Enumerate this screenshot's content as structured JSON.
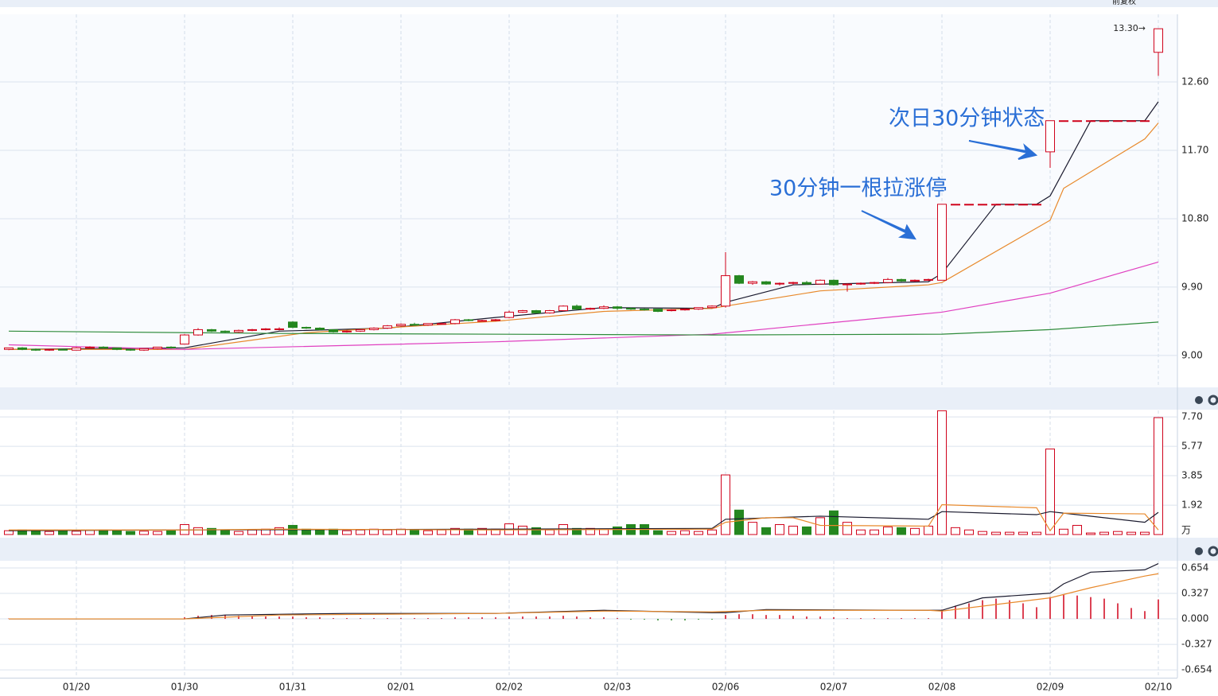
{
  "toolbar_label": "前复权",
  "chart_data": [
    {
      "type": "candlestick",
      "categories": [
        null,
        null,
        null,
        null,
        null,
        "01/20",
        null,
        null,
        null,
        null,
        null,
        null,
        null,
        "01/30",
        null,
        null,
        null,
        null,
        null,
        null,
        null,
        "01/31",
        null,
        null,
        null,
        null,
        null,
        null,
        null,
        "02/01",
        null,
        null,
        null,
        null,
        null,
        null,
        null,
        "02/02",
        null,
        null,
        null,
        null,
        null,
        null,
        null,
        "02/03",
        null,
        null,
        null,
        null,
        null,
        null,
        null,
        "02/06",
        null,
        null,
        null,
        null,
        null,
        null,
        null,
        "02/07",
        null,
        null,
        null,
        null,
        null,
        null,
        null,
        "02/08",
        null,
        null,
        null,
        null,
        null,
        null,
        null,
        "02/09",
        null,
        null,
        null,
        null,
        null,
        null,
        null,
        "02/10"
      ],
      "open": [
        9.08,
        9.1,
        9.08,
        9.07,
        9.08,
        9.07,
        9.1,
        9.11,
        9.1,
        9.08,
        9.07,
        9.09,
        9.11,
        9.15,
        9.27,
        9.34,
        9.32,
        9.31,
        9.33,
        9.34,
        9.35,
        9.44,
        9.37,
        9.36,
        9.34,
        9.31,
        9.32,
        9.34,
        9.36,
        9.39,
        9.41,
        9.4,
        9.42,
        9.42,
        9.47,
        9.46,
        9.46,
        9.5,
        9.57,
        9.59,
        9.56,
        9.59,
        9.65,
        9.61,
        9.62,
        9.64,
        9.62,
        9.61,
        9.61,
        9.59,
        9.6,
        9.61,
        9.63,
        9.65,
        10.05,
        9.95,
        9.97,
        9.94,
        9.95,
        9.96,
        9.94,
        9.99,
        9.93,
        9.94,
        9.95,
        9.96,
        10.0,
        9.98,
        9.99,
        9.99,
        10.99,
        10.99,
        10.99,
        10.99,
        10.99,
        10.99,
        10.99,
        11.68,
        12.09,
        12.09,
        12.09,
        12.09,
        12.09,
        12.09,
        12.09,
        12.99
      ],
      "high": [
        9.1,
        9.11,
        9.09,
        9.08,
        9.09,
        9.11,
        9.12,
        9.12,
        9.1,
        9.09,
        9.09,
        9.11,
        9.12,
        9.28,
        9.36,
        9.35,
        9.33,
        9.34,
        9.35,
        9.36,
        9.37,
        9.45,
        9.38,
        9.37,
        9.34,
        9.33,
        9.34,
        9.37,
        9.4,
        9.42,
        9.43,
        9.42,
        9.43,
        9.48,
        9.48,
        9.47,
        9.48,
        9.59,
        9.6,
        9.6,
        9.6,
        9.66,
        9.67,
        9.63,
        9.66,
        9.65,
        9.63,
        9.62,
        9.61,
        9.61,
        9.62,
        9.63,
        9.66,
        10.36,
        10.06,
        9.98,
        9.98,
        9.96,
        9.97,
        9.98,
        10.0,
        10.0,
        9.95,
        9.96,
        9.97,
        10.02,
        10.01,
        10.0,
        10.01,
        10.99,
        10.99,
        10.99,
        10.99,
        10.99,
        10.99,
        10.99,
        10.99,
        12.09,
        12.09,
        12.09,
        12.09,
        12.09,
        12.09,
        12.09,
        12.09,
        13.3
      ],
      "low": [
        9.07,
        9.07,
        9.06,
        9.06,
        9.07,
        9.07,
        9.09,
        9.09,
        9.07,
        9.06,
        9.06,
        9.08,
        9.09,
        9.15,
        9.26,
        9.31,
        9.3,
        9.3,
        9.32,
        9.33,
        9.33,
        9.36,
        9.35,
        9.33,
        9.3,
        9.3,
        9.31,
        9.33,
        9.35,
        9.38,
        9.39,
        9.39,
        9.41,
        9.41,
        9.45,
        9.45,
        9.45,
        9.49,
        9.56,
        9.55,
        9.55,
        9.58,
        9.6,
        9.6,
        9.61,
        9.6,
        9.6,
        9.59,
        9.57,
        9.58,
        9.59,
        9.6,
        9.62,
        9.63,
        9.94,
        9.93,
        9.93,
        9.92,
        9.93,
        9.93,
        9.93,
        9.92,
        9.84,
        9.93,
        9.94,
        9.95,
        9.97,
        9.97,
        9.98,
        9.99,
        10.99,
        10.99,
        10.99,
        10.99,
        10.99,
        10.99,
        10.99,
        11.47,
        12.09,
        12.09,
        12.09,
        12.09,
        12.09,
        12.09,
        12.09,
        12.68
      ],
      "close": [
        9.1,
        9.08,
        9.07,
        9.08,
        9.07,
        9.1,
        9.11,
        9.1,
        9.08,
        9.07,
        9.09,
        9.11,
        9.1,
        9.27,
        9.34,
        9.32,
        9.31,
        9.33,
        9.34,
        9.35,
        9.35,
        9.37,
        9.36,
        9.34,
        9.31,
        9.32,
        9.34,
        9.36,
        9.39,
        9.41,
        9.4,
        9.42,
        9.42,
        9.47,
        9.46,
        9.46,
        9.47,
        9.57,
        9.59,
        9.56,
        9.59,
        9.65,
        9.61,
        9.62,
        9.64,
        9.62,
        9.61,
        9.6,
        9.58,
        9.6,
        9.61,
        9.63,
        9.65,
        10.05,
        9.95,
        9.97,
        9.94,
        9.95,
        9.96,
        9.94,
        9.99,
        9.93,
        9.94,
        9.95,
        9.96,
        10.0,
        9.98,
        9.99,
        10.0,
        10.99,
        10.99,
        10.99,
        10.99,
        10.99,
        10.99,
        10.99,
        10.99,
        12.09,
        12.09,
        12.09,
        12.09,
        12.09,
        12.09,
        12.09,
        12.09,
        13.3
      ],
      "up_color": "#d0021b",
      "down_color": "#24871f",
      "ylim": [
        8.58,
        13.49
      ],
      "yticks": [
        {
          "value": 12.6,
          "label": "12.60"
        },
        {
          "value": 11.7,
          "label": "11.70"
        },
        {
          "value": 10.8,
          "label": "10.80"
        },
        {
          "value": 9.9,
          "label": "9.90"
        },
        {
          "value": 9,
          "label": "9.00"
        }
      ],
      "grid": true,
      "lines": [
        {
          "color": "#1a1a2e",
          "x": [
            0,
            13,
            20,
            28,
            36,
            44,
            52,
            53,
            58,
            68,
            69,
            73,
            76,
            77,
            80,
            84,
            85
          ],
          "values": [
            9.08,
            9.1,
            9.32,
            9.36,
            9.5,
            9.63,
            9.62,
            9.7,
            9.93,
            9.97,
            10.08,
            10.99,
            10.99,
            11.1,
            12.09,
            12.09,
            12.34
          ]
        },
        {
          "color": "#e8892b",
          "x": [
            0,
            13,
            22,
            36,
            44,
            52,
            53,
            60,
            68,
            69,
            77,
            78,
            84,
            85
          ],
          "values": [
            9.08,
            9.08,
            9.3,
            9.45,
            9.58,
            9.62,
            9.65,
            9.85,
            9.93,
            9.96,
            10.78,
            11.2,
            11.85,
            12.06
          ]
        },
        {
          "color": "#e040c0",
          "x": [
            0,
            13,
            36,
            52,
            69,
            77,
            85
          ],
          "values": [
            9.14,
            9.08,
            9.18,
            9.28,
            9.57,
            9.82,
            10.23
          ]
        },
        {
          "color": "#2e8b3a",
          "x": [
            0,
            20,
            52,
            69,
            77,
            85
          ],
          "values": [
            9.32,
            9.29,
            9.27,
            9.28,
            9.34,
            9.44
          ]
        }
      ],
      "last_label": "13.30→",
      "annotations": [
        "次日30分钟状态",
        "30分钟一根拉涨停"
      ]
    },
    {
      "type": "volume",
      "values": [
        0.25,
        0.3,
        0.22,
        0.2,
        0.25,
        0.22,
        0.28,
        0.3,
        0.25,
        0.2,
        0.22,
        0.2,
        0.25,
        0.65,
        0.45,
        0.4,
        0.3,
        0.2,
        0.3,
        0.35,
        0.45,
        0.6,
        0.35,
        0.3,
        0.35,
        0.25,
        0.3,
        0.35,
        0.3,
        0.35,
        0.3,
        0.25,
        0.3,
        0.4,
        0.35,
        0.4,
        0.35,
        0.7,
        0.55,
        0.45,
        0.3,
        0.65,
        0.4,
        0.4,
        0.35,
        0.5,
        0.65,
        0.65,
        0.25,
        0.2,
        0.25,
        0.2,
        0.3,
        3.9,
        1.6,
        0.8,
        0.45,
        0.65,
        0.55,
        0.5,
        1.1,
        1.55,
        0.8,
        0.3,
        0.3,
        0.5,
        0.45,
        0.4,
        0.55,
        8.1,
        0.45,
        0.3,
        0.2,
        0.15,
        0.15,
        0.15,
        0.15,
        5.6,
        0.35,
        0.6,
        0.1,
        0.15,
        0.2,
        0.15,
        0.15,
        7.65
      ],
      "ylim": [
        0,
        8.12
      ],
      "yticks": [
        {
          "value": 7.7,
          "label": "7.70"
        },
        5.77,
        3.85,
        1.92
      ],
      "unit_label": "万",
      "grid": true,
      "lines": [
        {
          "color": "#1a1a2e",
          "x": [
            0,
            13,
            36,
            52,
            53,
            60,
            68,
            69,
            76,
            77,
            78,
            84,
            85
          ],
          "values": [
            0.25,
            0.3,
            0.35,
            0.4,
            1.0,
            1.2,
            1.0,
            1.5,
            1.3,
            1.5,
            1.4,
            0.8,
            1.45
          ]
        },
        {
          "color": "#e8892b",
          "x": [
            0,
            13,
            20,
            36,
            52,
            53,
            56,
            58,
            60,
            68,
            69,
            76,
            77,
            78,
            84,
            85
          ],
          "values": [
            0.3,
            0.3,
            0.35,
            0.3,
            0.35,
            0.8,
            1.1,
            1.1,
            0.6,
            0.55,
            1.95,
            1.75,
            0.25,
            1.4,
            1.35,
            0.3
          ]
        }
      ]
    },
    {
      "type": "macd",
      "values": [
        0.005,
        0.005,
        0.005,
        0.005,
        0.005,
        0.005,
        0.005,
        0.005,
        0.005,
        0.005,
        0.005,
        0.005,
        0.005,
        0.02,
        0.04,
        0.05,
        0.05,
        0.04,
        0.04,
        0.03,
        0.03,
        0.03,
        0.02,
        0.02,
        0.01,
        0.01,
        0.01,
        0.01,
        0.01,
        0.01,
        0.01,
        0.01,
        0.01,
        0.02,
        0.02,
        0.02,
        0.02,
        0.03,
        0.03,
        0.03,
        0.03,
        0.04,
        0.03,
        0.02,
        0.02,
        0.01,
        -0.01,
        -0.01,
        -0.02,
        -0.02,
        -0.02,
        -0.01,
        -0.01,
        0.05,
        0.06,
        0.06,
        0.05,
        0.05,
        0.04,
        0.03,
        0.03,
        0.02,
        0.01,
        0.01,
        0.01,
        0.01,
        0.01,
        0.01,
        0.01,
        0.12,
        0.17,
        0.2,
        0.24,
        0.26,
        0.24,
        0.2,
        0.15,
        0.28,
        0.31,
        0.3,
        0.28,
        0.26,
        0.2,
        0.14,
        0.1,
        0.25
      ],
      "ylim": [
        -0.755,
        0.746
      ],
      "yticks": [
        0.654,
        0.327,
        {
          "value": 0,
          "label": "0.000"
        },
        -0.327,
        -0.654
      ],
      "up_color": "#d0021b",
      "down_color": "#24871f",
      "grid": true,
      "lines": [
        {
          "color": "#1a1a2e",
          "x": [
            0,
            13,
            16,
            25,
            36,
            44,
            52,
            53,
            56,
            68,
            69,
            72,
            77,
            78,
            80,
            84,
            85
          ],
          "values": [
            0,
            0,
            0.05,
            0.07,
            0.07,
            0.11,
            0.08,
            0.08,
            0.12,
            0.11,
            0.11,
            0.27,
            0.33,
            0.45,
            0.6,
            0.63,
            0.71
          ]
        },
        {
          "color": "#e8892b",
          "x": [
            0,
            13,
            20,
            36,
            44,
            52,
            56,
            68,
            69,
            77,
            80,
            84,
            85
          ],
          "values": [
            0,
            0,
            0.05,
            0.07,
            0.1,
            0.09,
            0.11,
            0.11,
            0.1,
            0.27,
            0.4,
            0.55,
            0.58
          ]
        }
      ]
    }
  ]
}
